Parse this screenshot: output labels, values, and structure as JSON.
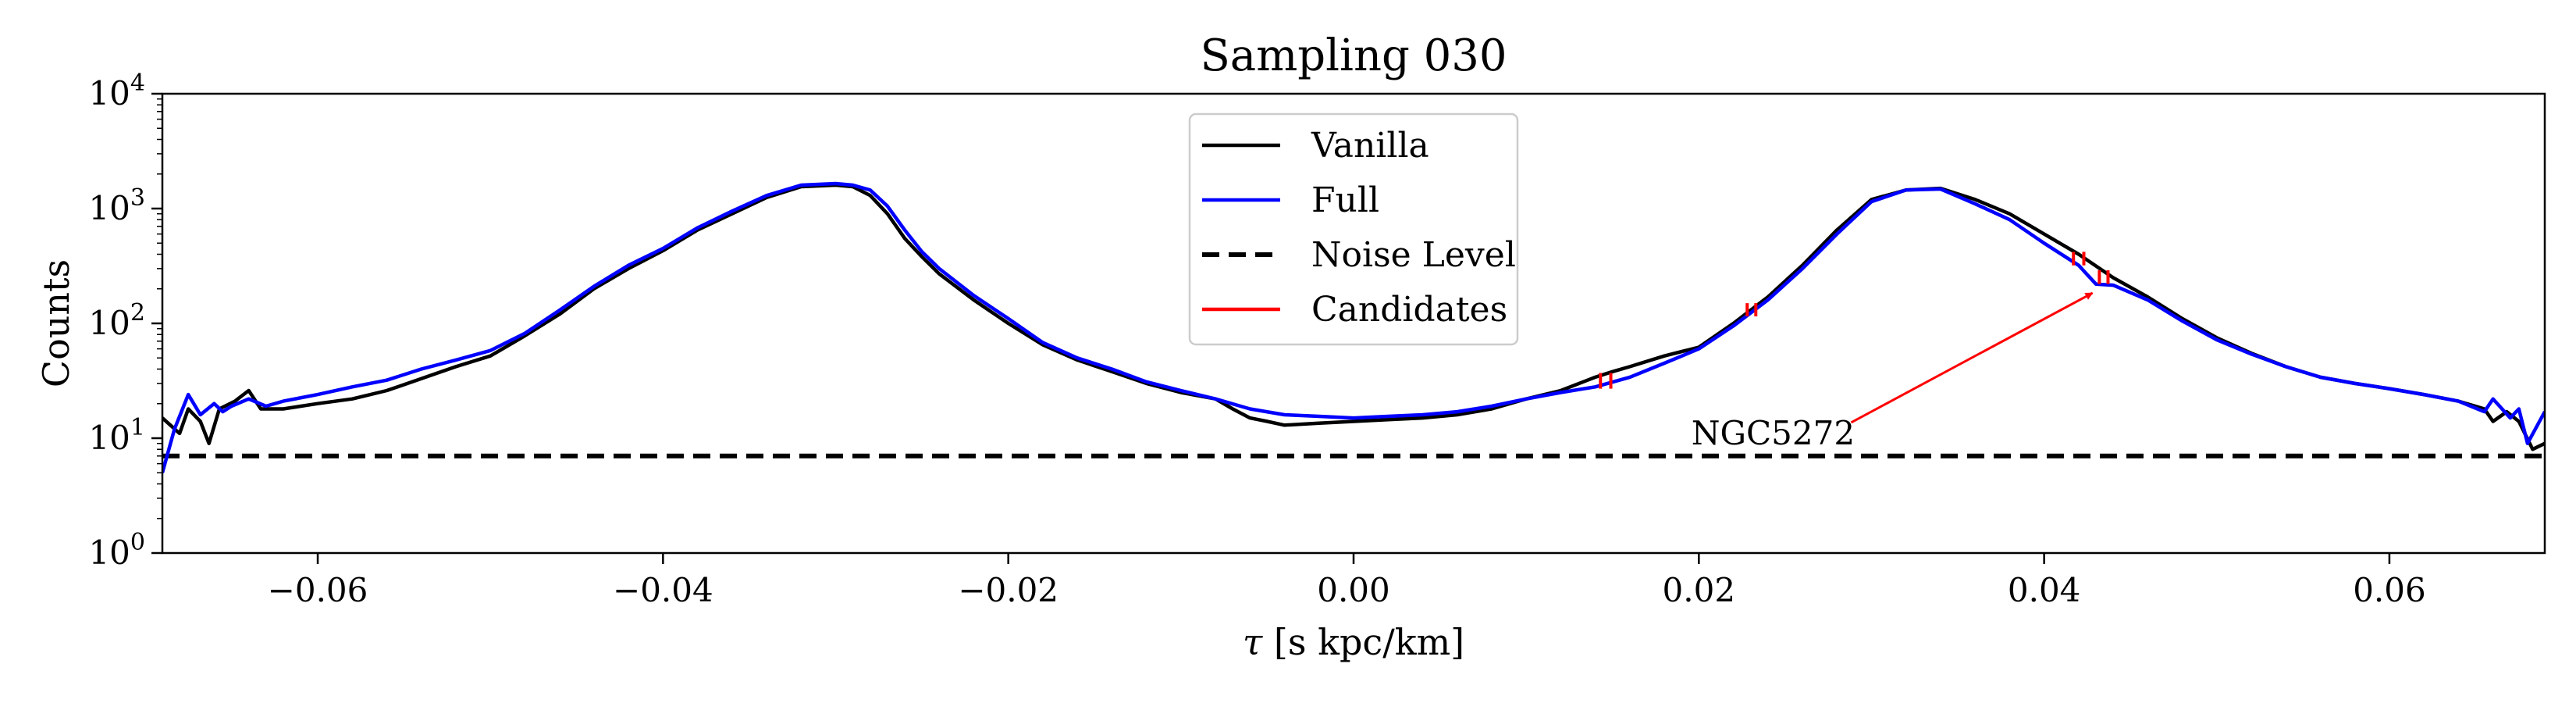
{
  "chart_data": {
    "type": "line",
    "title": "Sampling 030",
    "xlabel": "τ [s kpc/km]",
    "ylabel": "Counts",
    "xlim": [
      -0.069,
      0.069
    ],
    "ylim": [
      1,
      10000
    ],
    "yscale": "log",
    "grid": false,
    "legend_position": "top-center",
    "x_ticks": [
      -0.06,
      -0.04,
      -0.02,
      0.0,
      0.02,
      0.04,
      0.06
    ],
    "x_tick_labels": [
      "−0.06",
      "−0.04",
      "−0.02",
      "0.00",
      "0.02",
      "0.04",
      "0.06"
    ],
    "y_ticks": [
      1,
      10,
      100,
      1000,
      10000
    ],
    "y_tick_labels": [
      {
        "base": "10",
        "exp": "0"
      },
      {
        "base": "10",
        "exp": "1"
      },
      {
        "base": "10",
        "exp": "2"
      },
      {
        "base": "10",
        "exp": "3"
      },
      {
        "base": "10",
        "exp": "4"
      }
    ],
    "series": [
      {
        "name": "Vanilla",
        "color": "#000000",
        "style": "solid",
        "points": [
          [
            -0.069,
            15
          ],
          [
            -0.068,
            11
          ],
          [
            -0.0675,
            18
          ],
          [
            -0.0668,
            14
          ],
          [
            -0.0663,
            9
          ],
          [
            -0.0657,
            18
          ],
          [
            -0.0648,
            21
          ],
          [
            -0.064,
            26
          ],
          [
            -0.0633,
            18
          ],
          [
            -0.062,
            18
          ],
          [
            -0.06,
            20
          ],
          [
            -0.058,
            22
          ],
          [
            -0.056,
            26
          ],
          [
            -0.054,
            33
          ],
          [
            -0.052,
            42
          ],
          [
            -0.05,
            52
          ],
          [
            -0.048,
            78
          ],
          [
            -0.046,
            120
          ],
          [
            -0.044,
            200
          ],
          [
            -0.042,
            300
          ],
          [
            -0.04,
            430
          ],
          [
            -0.038,
            650
          ],
          [
            -0.036,
            900
          ],
          [
            -0.034,
            1250
          ],
          [
            -0.032,
            1550
          ],
          [
            -0.03,
            1600
          ],
          [
            -0.029,
            1550
          ],
          [
            -0.028,
            1300
          ],
          [
            -0.027,
            900
          ],
          [
            -0.026,
            550
          ],
          [
            -0.025,
            380
          ],
          [
            -0.024,
            270
          ],
          [
            -0.022,
            160
          ],
          [
            -0.02,
            100
          ],
          [
            -0.018,
            65
          ],
          [
            -0.016,
            48
          ],
          [
            -0.014,
            38
          ],
          [
            -0.012,
            30
          ],
          [
            -0.01,
            25
          ],
          [
            -0.008,
            22
          ],
          [
            -0.007,
            18
          ],
          [
            -0.006,
            15
          ],
          [
            -0.005,
            14
          ],
          [
            -0.004,
            13
          ],
          [
            -0.002,
            13.5
          ],
          [
            0.0,
            14
          ],
          [
            0.002,
            14.5
          ],
          [
            0.004,
            15
          ],
          [
            0.006,
            16
          ],
          [
            0.008,
            18
          ],
          [
            0.01,
            22
          ],
          [
            0.012,
            26
          ],
          [
            0.014,
            34
          ],
          [
            0.015,
            38
          ],
          [
            0.016,
            42
          ],
          [
            0.018,
            52
          ],
          [
            0.02,
            62
          ],
          [
            0.022,
            100
          ],
          [
            0.024,
            170
          ],
          [
            0.026,
            320
          ],
          [
            0.028,
            650
          ],
          [
            0.03,
            1200
          ],
          [
            0.032,
            1450
          ],
          [
            0.034,
            1500
          ],
          [
            0.036,
            1200
          ],
          [
            0.038,
            900
          ],
          [
            0.04,
            600
          ],
          [
            0.042,
            400
          ],
          [
            0.044,
            250
          ],
          [
            0.046,
            170
          ],
          [
            0.048,
            110
          ],
          [
            0.05,
            75
          ],
          [
            0.052,
            55
          ],
          [
            0.054,
            42
          ],
          [
            0.056,
            34
          ],
          [
            0.058,
            30
          ],
          [
            0.06,
            27
          ],
          [
            0.062,
            24
          ],
          [
            0.064,
            21
          ],
          [
            0.0655,
            18
          ],
          [
            0.066,
            14
          ],
          [
            0.0668,
            17
          ],
          [
            0.0675,
            14
          ],
          [
            0.0683,
            8
          ],
          [
            0.069,
            9
          ]
        ]
      },
      {
        "name": "Full",
        "color": "#0000ff",
        "style": "solid",
        "points": [
          [
            -0.069,
            5
          ],
          [
            -0.0683,
            12
          ],
          [
            -0.0675,
            24
          ],
          [
            -0.0668,
            16
          ],
          [
            -0.066,
            20
          ],
          [
            -0.0655,
            17
          ],
          [
            -0.065,
            19
          ],
          [
            -0.064,
            22
          ],
          [
            -0.063,
            19
          ],
          [
            -0.062,
            21
          ],
          [
            -0.06,
            24
          ],
          [
            -0.058,
            28
          ],
          [
            -0.056,
            32
          ],
          [
            -0.054,
            40
          ],
          [
            -0.052,
            48
          ],
          [
            -0.05,
            58
          ],
          [
            -0.048,
            82
          ],
          [
            -0.046,
            130
          ],
          [
            -0.044,
            210
          ],
          [
            -0.042,
            320
          ],
          [
            -0.04,
            450
          ],
          [
            -0.038,
            680
          ],
          [
            -0.036,
            950
          ],
          [
            -0.034,
            1300
          ],
          [
            -0.032,
            1600
          ],
          [
            -0.03,
            1650
          ],
          [
            -0.029,
            1600
          ],
          [
            -0.028,
            1450
          ],
          [
            -0.027,
            1050
          ],
          [
            -0.026,
            650
          ],
          [
            -0.025,
            420
          ],
          [
            -0.024,
            300
          ],
          [
            -0.022,
            175
          ],
          [
            -0.02,
            110
          ],
          [
            -0.018,
            68
          ],
          [
            -0.016,
            50
          ],
          [
            -0.014,
            40
          ],
          [
            -0.012,
            31
          ],
          [
            -0.01,
            26
          ],
          [
            -0.008,
            22
          ],
          [
            -0.006,
            18
          ],
          [
            -0.004,
            16
          ],
          [
            -0.002,
            15.5
          ],
          [
            0.0,
            15
          ],
          [
            0.002,
            15.5
          ],
          [
            0.004,
            16
          ],
          [
            0.006,
            17
          ],
          [
            0.008,
            19
          ],
          [
            0.01,
            22
          ],
          [
            0.012,
            25
          ],
          [
            0.014,
            28
          ],
          [
            0.016,
            34
          ],
          [
            0.018,
            45
          ],
          [
            0.02,
            60
          ],
          [
            0.022,
            95
          ],
          [
            0.024,
            160
          ],
          [
            0.026,
            300
          ],
          [
            0.028,
            600
          ],
          [
            0.03,
            1150
          ],
          [
            0.032,
            1450
          ],
          [
            0.034,
            1480
          ],
          [
            0.036,
            1100
          ],
          [
            0.038,
            800
          ],
          [
            0.04,
            500
          ],
          [
            0.042,
            320
          ],
          [
            0.043,
            220
          ],
          [
            0.044,
            215
          ],
          [
            0.046,
            160
          ],
          [
            0.048,
            105
          ],
          [
            0.05,
            72
          ],
          [
            0.052,
            54
          ],
          [
            0.054,
            42
          ],
          [
            0.056,
            34
          ],
          [
            0.058,
            30
          ],
          [
            0.06,
            27
          ],
          [
            0.062,
            24
          ],
          [
            0.064,
            21
          ],
          [
            0.0655,
            17
          ],
          [
            0.066,
            22
          ],
          [
            0.067,
            15
          ],
          [
            0.0675,
            18
          ],
          [
            0.068,
            9
          ],
          [
            0.069,
            17
          ]
        ]
      },
      {
        "name": "Noise Level",
        "color": "#000000",
        "style": "dashed",
        "points": [
          [
            -0.069,
            7
          ],
          [
            0.069,
            7
          ]
        ]
      },
      {
        "name": "Candidates",
        "color": "#ff0000",
        "style": "solid",
        "segments": [
          [
            [
              0.0143,
              27
            ],
            [
              0.0143,
              37
            ]
          ],
          [
            [
              0.0149,
              27
            ],
            [
              0.0149,
              37
            ]
          ],
          [
            [
              0.0228,
              115
            ],
            [
              0.0228,
              150
            ]
          ],
          [
            [
              0.0233,
              115
            ],
            [
              0.0233,
              150
            ]
          ],
          [
            [
              0.0417,
              320
            ],
            [
              0.0417,
              420
            ]
          ],
          [
            [
              0.0423,
              320
            ],
            [
              0.0423,
              420
            ]
          ],
          [
            [
              0.0432,
              220
            ],
            [
              0.0432,
              290
            ]
          ],
          [
            [
              0.0437,
              220
            ],
            [
              0.0437,
              290
            ]
          ]
        ]
      }
    ],
    "annotations": [
      {
        "text": "NGC5272",
        "xy": [
          0.0428,
          215
        ],
        "xytext": [
          0.0243,
          11
        ],
        "arrow_color": "#ff0000"
      }
    ]
  }
}
